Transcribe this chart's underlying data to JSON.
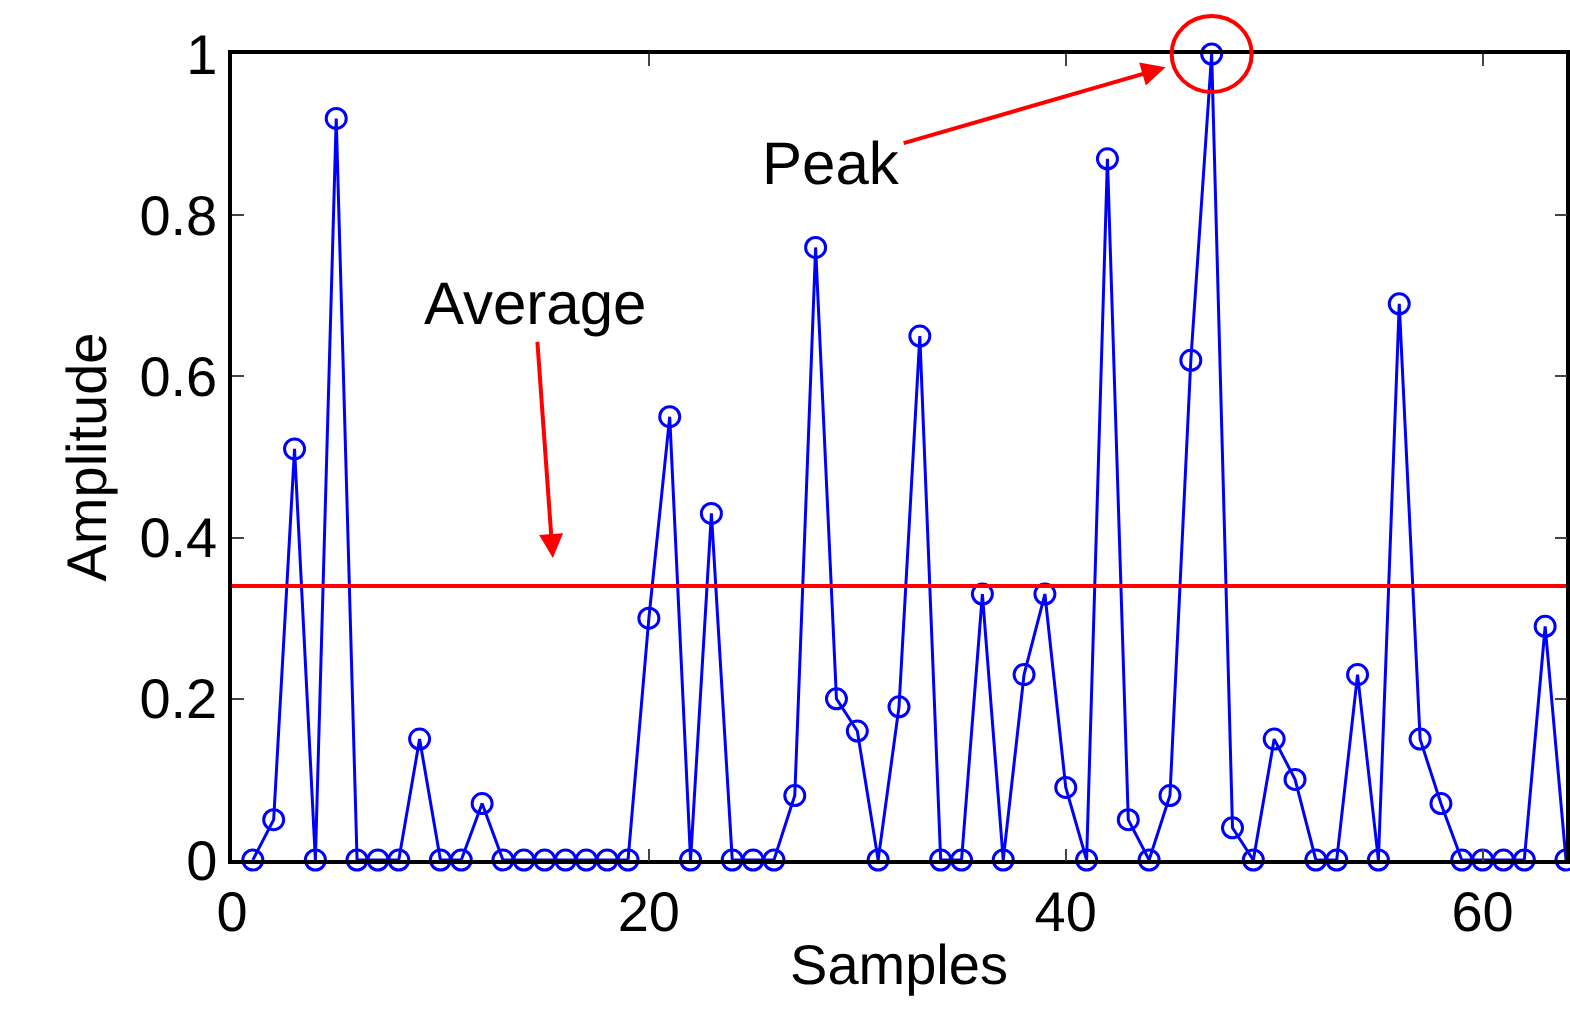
{
  "chart_data": {
    "type": "line",
    "xlabel": "Samples",
    "ylabel": "Amplitude",
    "x": [
      1,
      2,
      3,
      4,
      5,
      6,
      7,
      8,
      9,
      10,
      11,
      12,
      13,
      14,
      15,
      16,
      17,
      18,
      19,
      20,
      21,
      22,
      23,
      24,
      25,
      26,
      27,
      28,
      29,
      30,
      31,
      32,
      33,
      34,
      35,
      36,
      37,
      38,
      39,
      40,
      41,
      42,
      43,
      44,
      45,
      46,
      47,
      48,
      49,
      50,
      51,
      52,
      53,
      54,
      55,
      56,
      57,
      58,
      59,
      60,
      61,
      62,
      63,
      64
    ],
    "series": [
      {
        "color": "#0000ff",
        "values": [
          0,
          0.05,
          0.51,
          0,
          0.92,
          0,
          0,
          0,
          0.15,
          0,
          0,
          0.07,
          0,
          0,
          0,
          0,
          0,
          0,
          0,
          0.3,
          0.55,
          0,
          0.43,
          0,
          0,
          0,
          0.08,
          0.76,
          0.2,
          0.16,
          0,
          0.19,
          0.65,
          0,
          0,
          0.33,
          0,
          0.23,
          0.33,
          0.09,
          0,
          0.87,
          0.05,
          0,
          0.08,
          0.62,
          1,
          0.04,
          0,
          0.15,
          0.1,
          0,
          0,
          0.23,
          0,
          0.69,
          0.15,
          0.07,
          0,
          0,
          0,
          0,
          0.29,
          0
        ]
      }
    ],
    "xlim": [
      0,
      64
    ],
    "xticks": [
      0,
      20,
      40,
      60
    ],
    "ylim": [
      0,
      1
    ],
    "yticks": [
      0,
      0.2,
      0.4,
      0.6,
      0.8,
      1
    ],
    "ref_lines": [
      {
        "axis": "y",
        "value": 0.34,
        "label": "Average",
        "color": "#ff0000"
      }
    ],
    "annotations": [
      {
        "text": "Peak",
        "x": 47,
        "y": 1
      }
    ],
    "marker": "circle",
    "line_style": "solid"
  }
}
